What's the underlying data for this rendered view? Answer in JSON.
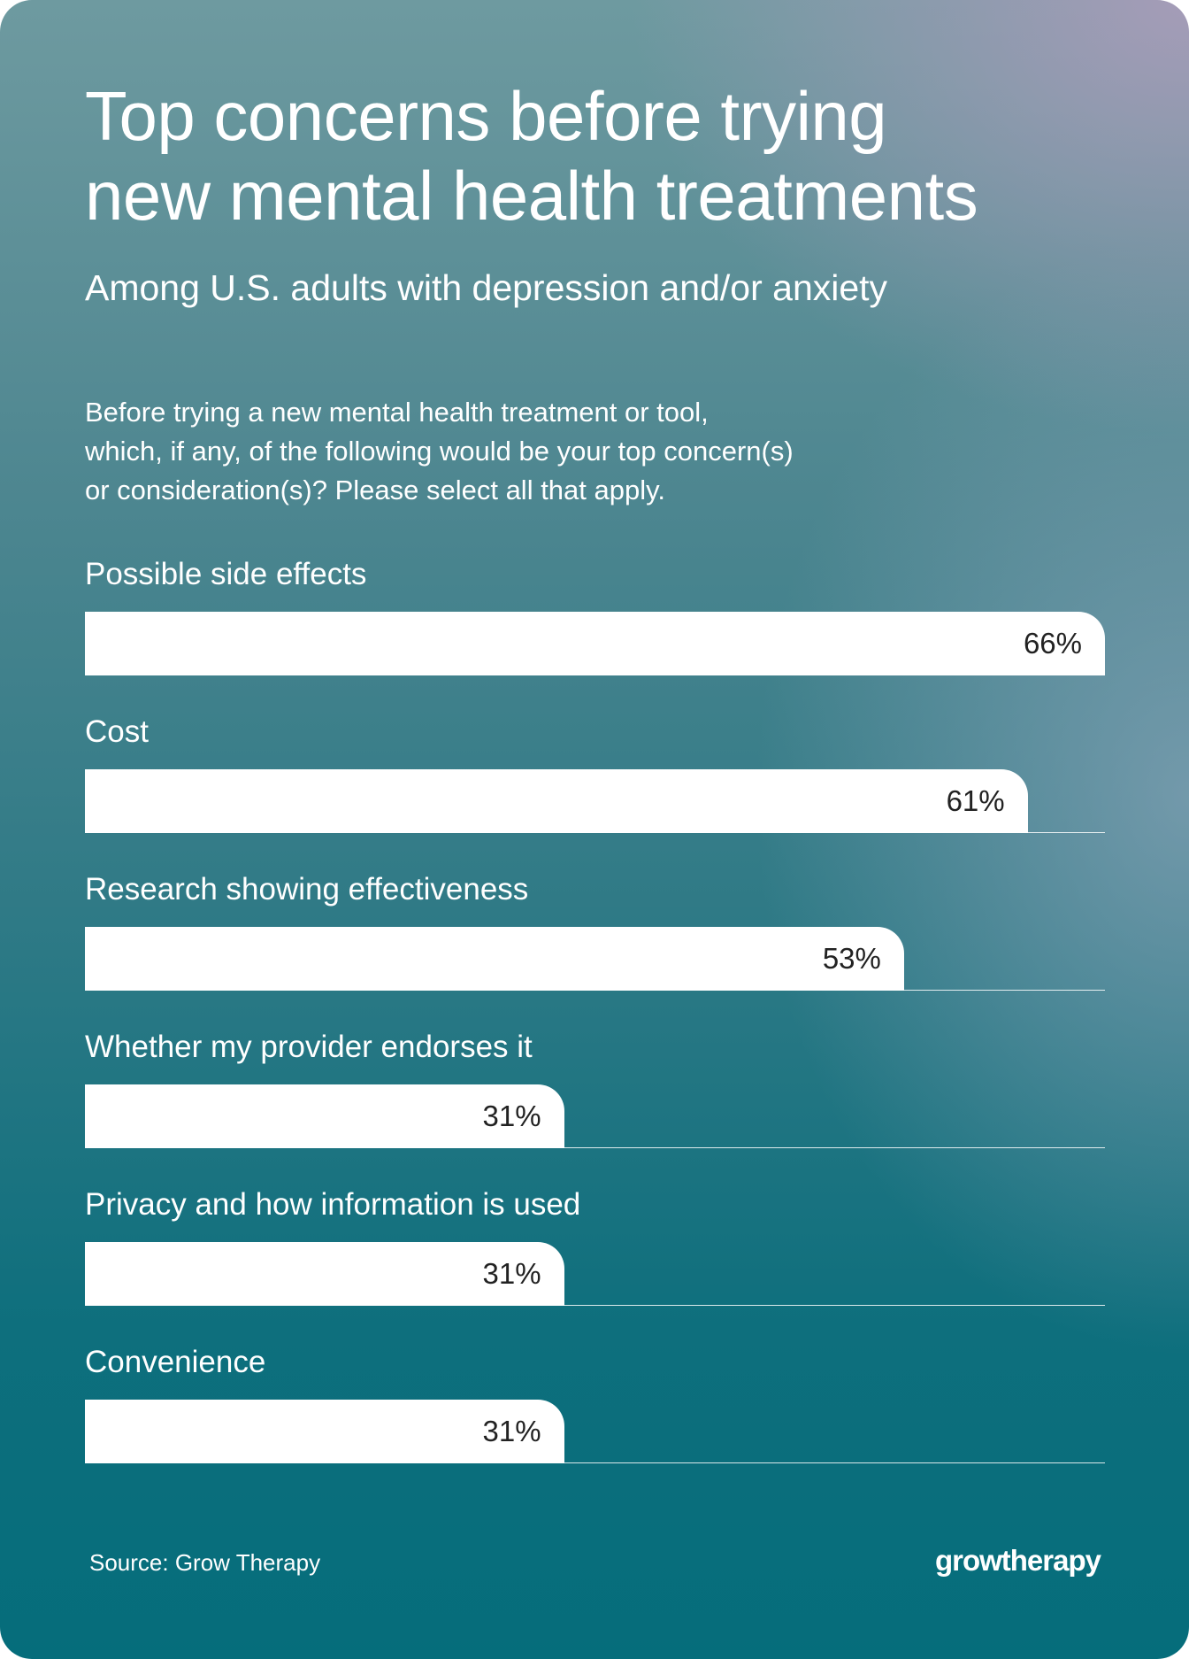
{
  "header": {
    "title_line1": "Top concerns before trying",
    "title_line2": "new mental health treatments",
    "subtitle": "Among U.S. adults with depression and/or anxiety",
    "question_lines": [
      "Before trying a new mental health treatment or tool,",
      "which, if any, of the following would be your top concern(s)",
      "or consideration(s)? Please select all that apply."
    ]
  },
  "chart_data": {
    "type": "bar",
    "orientation": "horizontal",
    "title": "Top concerns before trying new mental health treatments",
    "subtitle": "Among U.S. adults with depression and/or anxiety",
    "categories": [
      "Possible side effects",
      "Cost",
      "Research showing effectiveness",
      "Whether my provider endorses it",
      "Privacy and how information is used",
      "Convenience"
    ],
    "values": [
      66,
      61,
      53,
      31,
      31,
      31
    ],
    "value_labels": [
      "66%",
      "61%",
      "53%",
      "31%",
      "31%",
      "31%"
    ],
    "xlim": [
      0,
      66
    ],
    "grid": false,
    "colors": {
      "bar": "#ffffff",
      "value_text": "#222222",
      "background_dark": "#056d7b",
      "background_light": "#a89cb9"
    }
  },
  "footer": {
    "source": "Source: Grow Therapy",
    "logo": "growtherapy"
  }
}
